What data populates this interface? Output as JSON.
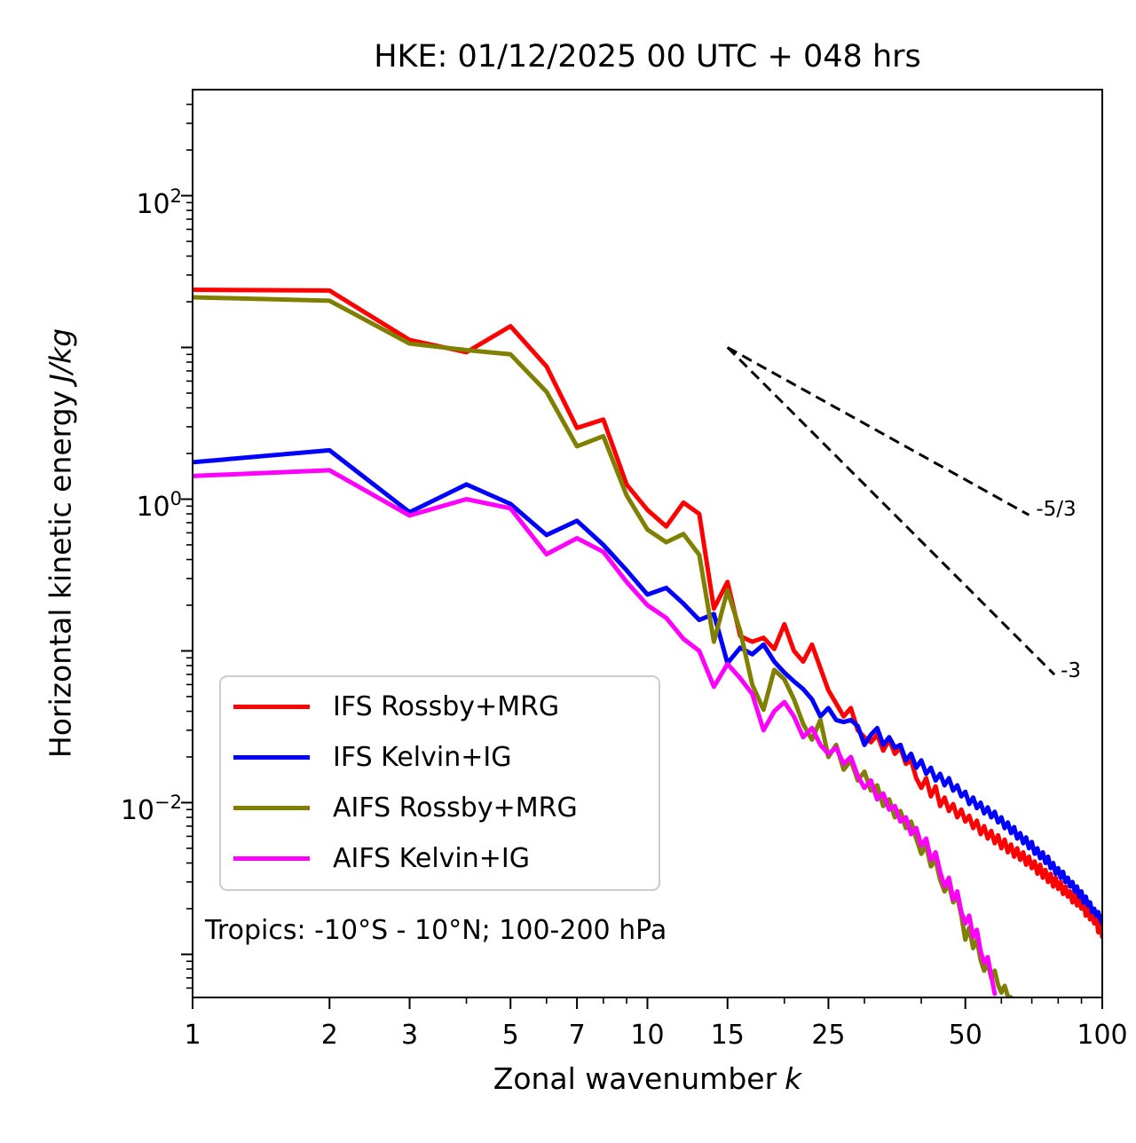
{
  "title": "HKE: 01/12/2025 00 UTC + 048 hrs",
  "annotation": "Tropics: -10°S - 10°N; 100-200 hPa",
  "chart_data": {
    "type": "line",
    "title": "HKE: 01/12/2025 00 UTC + 048 hrs",
    "xlabel": "Zonal wavenumber k",
    "xlabel_text": "Zonal wavenumber",
    "xlabel_math": "k",
    "ylabel": "Horizontal kinetic energy J/kg",
    "ylabel_text": "Horizontal kinetic energy",
    "ylabel_math": "J/kg",
    "xscale": "log",
    "yscale": "log",
    "xlim": [
      1,
      100
    ],
    "ylim": [
      0.00052,
      500
    ],
    "grid": false,
    "legend_position": "lower-left",
    "x_major_ticks": [
      1,
      2,
      3,
      5,
      7,
      10,
      15,
      25,
      50,
      100
    ],
    "x_minor_ticks": [
      4,
      6,
      8,
      9,
      20,
      30,
      40,
      60,
      70,
      80,
      90
    ],
    "y_labeled_ticks": [
      {
        "value": 100,
        "base": "10",
        "exp": "2"
      },
      {
        "value": 1,
        "base": "10",
        "exp": "0"
      },
      {
        "value": 0.01,
        "base": "10",
        "exp": "−2"
      }
    ],
    "x_start": 1,
    "series": [
      {
        "name": "IFS Rossby+MRG",
        "color": "#ff0000",
        "values": [
          24,
          23.7,
          11.2,
          9.3,
          13.8,
          7.5,
          2.95,
          3.35,
          1.25,
          0.85,
          0.66,
          0.95,
          0.8,
          0.19,
          0.285,
          0.125,
          0.115,
          0.122,
          0.103,
          0.15,
          0.1,
          0.085,
          0.11,
          0.077,
          0.055,
          0.045,
          0.037,
          0.042,
          0.03,
          0.027,
          0.025,
          0.028,
          0.022,
          0.026,
          0.021,
          0.023,
          0.018,
          0.019,
          0.0145,
          0.0125,
          0.0145,
          0.011,
          0.0128,
          0.0095,
          0.0108,
          0.0088,
          0.0098,
          0.008,
          0.009,
          0.0075,
          0.0082,
          0.0068,
          0.0076,
          0.0062,
          0.007,
          0.0058,
          0.0065,
          0.0054,
          0.0061,
          0.005,
          0.0057,
          0.0047,
          0.0053,
          0.0044,
          0.005,
          0.0042,
          0.0047,
          0.0039,
          0.0044,
          0.0037,
          0.0041,
          0.0034,
          0.0039,
          0.0032,
          0.0036,
          0.003,
          0.0034,
          0.0028,
          0.0032,
          0.0027,
          0.003,
          0.0025,
          0.0028,
          0.0024,
          0.0026,
          0.0022,
          0.0025,
          0.0021,
          0.0023,
          0.002,
          0.0022,
          0.0018,
          0.0021,
          0.0017,
          0.0019,
          0.0016,
          0.0018,
          0.0014,
          0.0016,
          0.0013
        ]
      },
      {
        "name": "IFS Kelvin+IG",
        "color": "#0000ff",
        "values": [
          1.75,
          2.1,
          0.82,
          1.25,
          0.93,
          0.58,
          0.72,
          0.5,
          0.34,
          0.235,
          0.26,
          0.205,
          0.16,
          0.175,
          0.083,
          0.105,
          0.095,
          0.11,
          0.085,
          0.072,
          0.063,
          0.056,
          0.048,
          0.037,
          0.042,
          0.035,
          0.034,
          0.035,
          0.032,
          0.024,
          0.028,
          0.031,
          0.024,
          0.027,
          0.023,
          0.024,
          0.019,
          0.021,
          0.017,
          0.019,
          0.0155,
          0.017,
          0.014,
          0.0155,
          0.013,
          0.0145,
          0.012,
          0.013,
          0.011,
          0.0118,
          0.0098,
          0.0108,
          0.0092,
          0.01,
          0.0085,
          0.0093,
          0.008,
          0.0087,
          0.0074,
          0.008,
          0.0068,
          0.0074,
          0.0063,
          0.0069,
          0.0058,
          0.0063,
          0.0054,
          0.0059,
          0.005,
          0.0055,
          0.0046,
          0.005,
          0.0043,
          0.0047,
          0.004,
          0.0044,
          0.0037,
          0.004,
          0.0034,
          0.0037,
          0.0032,
          0.0035,
          0.003,
          0.0032,
          0.0028,
          0.003,
          0.0026,
          0.0028,
          0.0024,
          0.0026,
          0.0022,
          0.0024,
          0.0021,
          0.0022,
          0.0019,
          0.002,
          0.0018,
          0.0019,
          0.0017,
          0.0016
        ]
      },
      {
        "name": "AIFS Rossby+MRG",
        "color": "#808000",
        "values": [
          21.4,
          20.3,
          10.6,
          9.6,
          9.0,
          5.1,
          2.23,
          2.6,
          1.06,
          0.63,
          0.52,
          0.59,
          0.43,
          0.115,
          0.25,
          0.135,
          0.06,
          0.041,
          0.075,
          0.065,
          0.048,
          0.033,
          0.026,
          0.035,
          0.02,
          0.024,
          0.0165,
          0.019,
          0.014,
          0.016,
          0.012,
          0.013,
          0.0095,
          0.0105,
          0.008,
          0.0088,
          0.0068,
          0.0075,
          0.0058,
          0.0046,
          0.0052,
          0.0038,
          0.0042,
          0.0031,
          0.0026,
          0.0029,
          0.0022,
          0.0024,
          0.0018,
          0.00125,
          0.0015,
          0.0011,
          0.00125,
          0.00092,
          0.00078,
          0.00088,
          0.0007,
          0.00078,
          0.00063,
          0.00056,
          0.00062,
          0.00053,
          0.00052
        ]
      },
      {
        "name": "AIFS Kelvin+IG",
        "color": "#ff00ff",
        "values": [
          1.42,
          1.55,
          0.78,
          1.0,
          0.87,
          0.433,
          0.553,
          0.45,
          0.285,
          0.2,
          0.165,
          0.12,
          0.1,
          0.058,
          0.082,
          0.066,
          0.052,
          0.03,
          0.04,
          0.046,
          0.037,
          0.027,
          0.031,
          0.024,
          0.021,
          0.023,
          0.018,
          0.02,
          0.015,
          0.0125,
          0.014,
          0.0105,
          0.0115,
          0.009,
          0.0095,
          0.0075,
          0.008,
          0.0062,
          0.0068,
          0.0052,
          0.0058,
          0.0042,
          0.0047,
          0.0035,
          0.0028,
          0.0032,
          0.0023,
          0.0026,
          0.0019,
          0.0016,
          0.0018,
          0.0013,
          0.00145,
          0.00105,
          0.00088,
          0.00096,
          0.00072,
          0.00055
        ]
      }
    ],
    "reference_lines": [
      {
        "label": "-5/3",
        "slope": -1.66667,
        "start_k": 15,
        "start_e": 10,
        "end_k": 69,
        "label_k": 71.5,
        "label_e": 0.84
      },
      {
        "label": "-3",
        "slope": -3,
        "start_k": 15,
        "start_e": 10,
        "end_k": 78.5,
        "label_k": 81,
        "label_e": 0.073
      }
    ]
  },
  "legend": {
    "items": [
      {
        "label": "IFS Rossby+MRG"
      },
      {
        "label": "IFS Kelvin+IG"
      },
      {
        "label": "AIFS Rossby+MRG"
      },
      {
        "label": "AIFS Kelvin+IG"
      }
    ]
  }
}
